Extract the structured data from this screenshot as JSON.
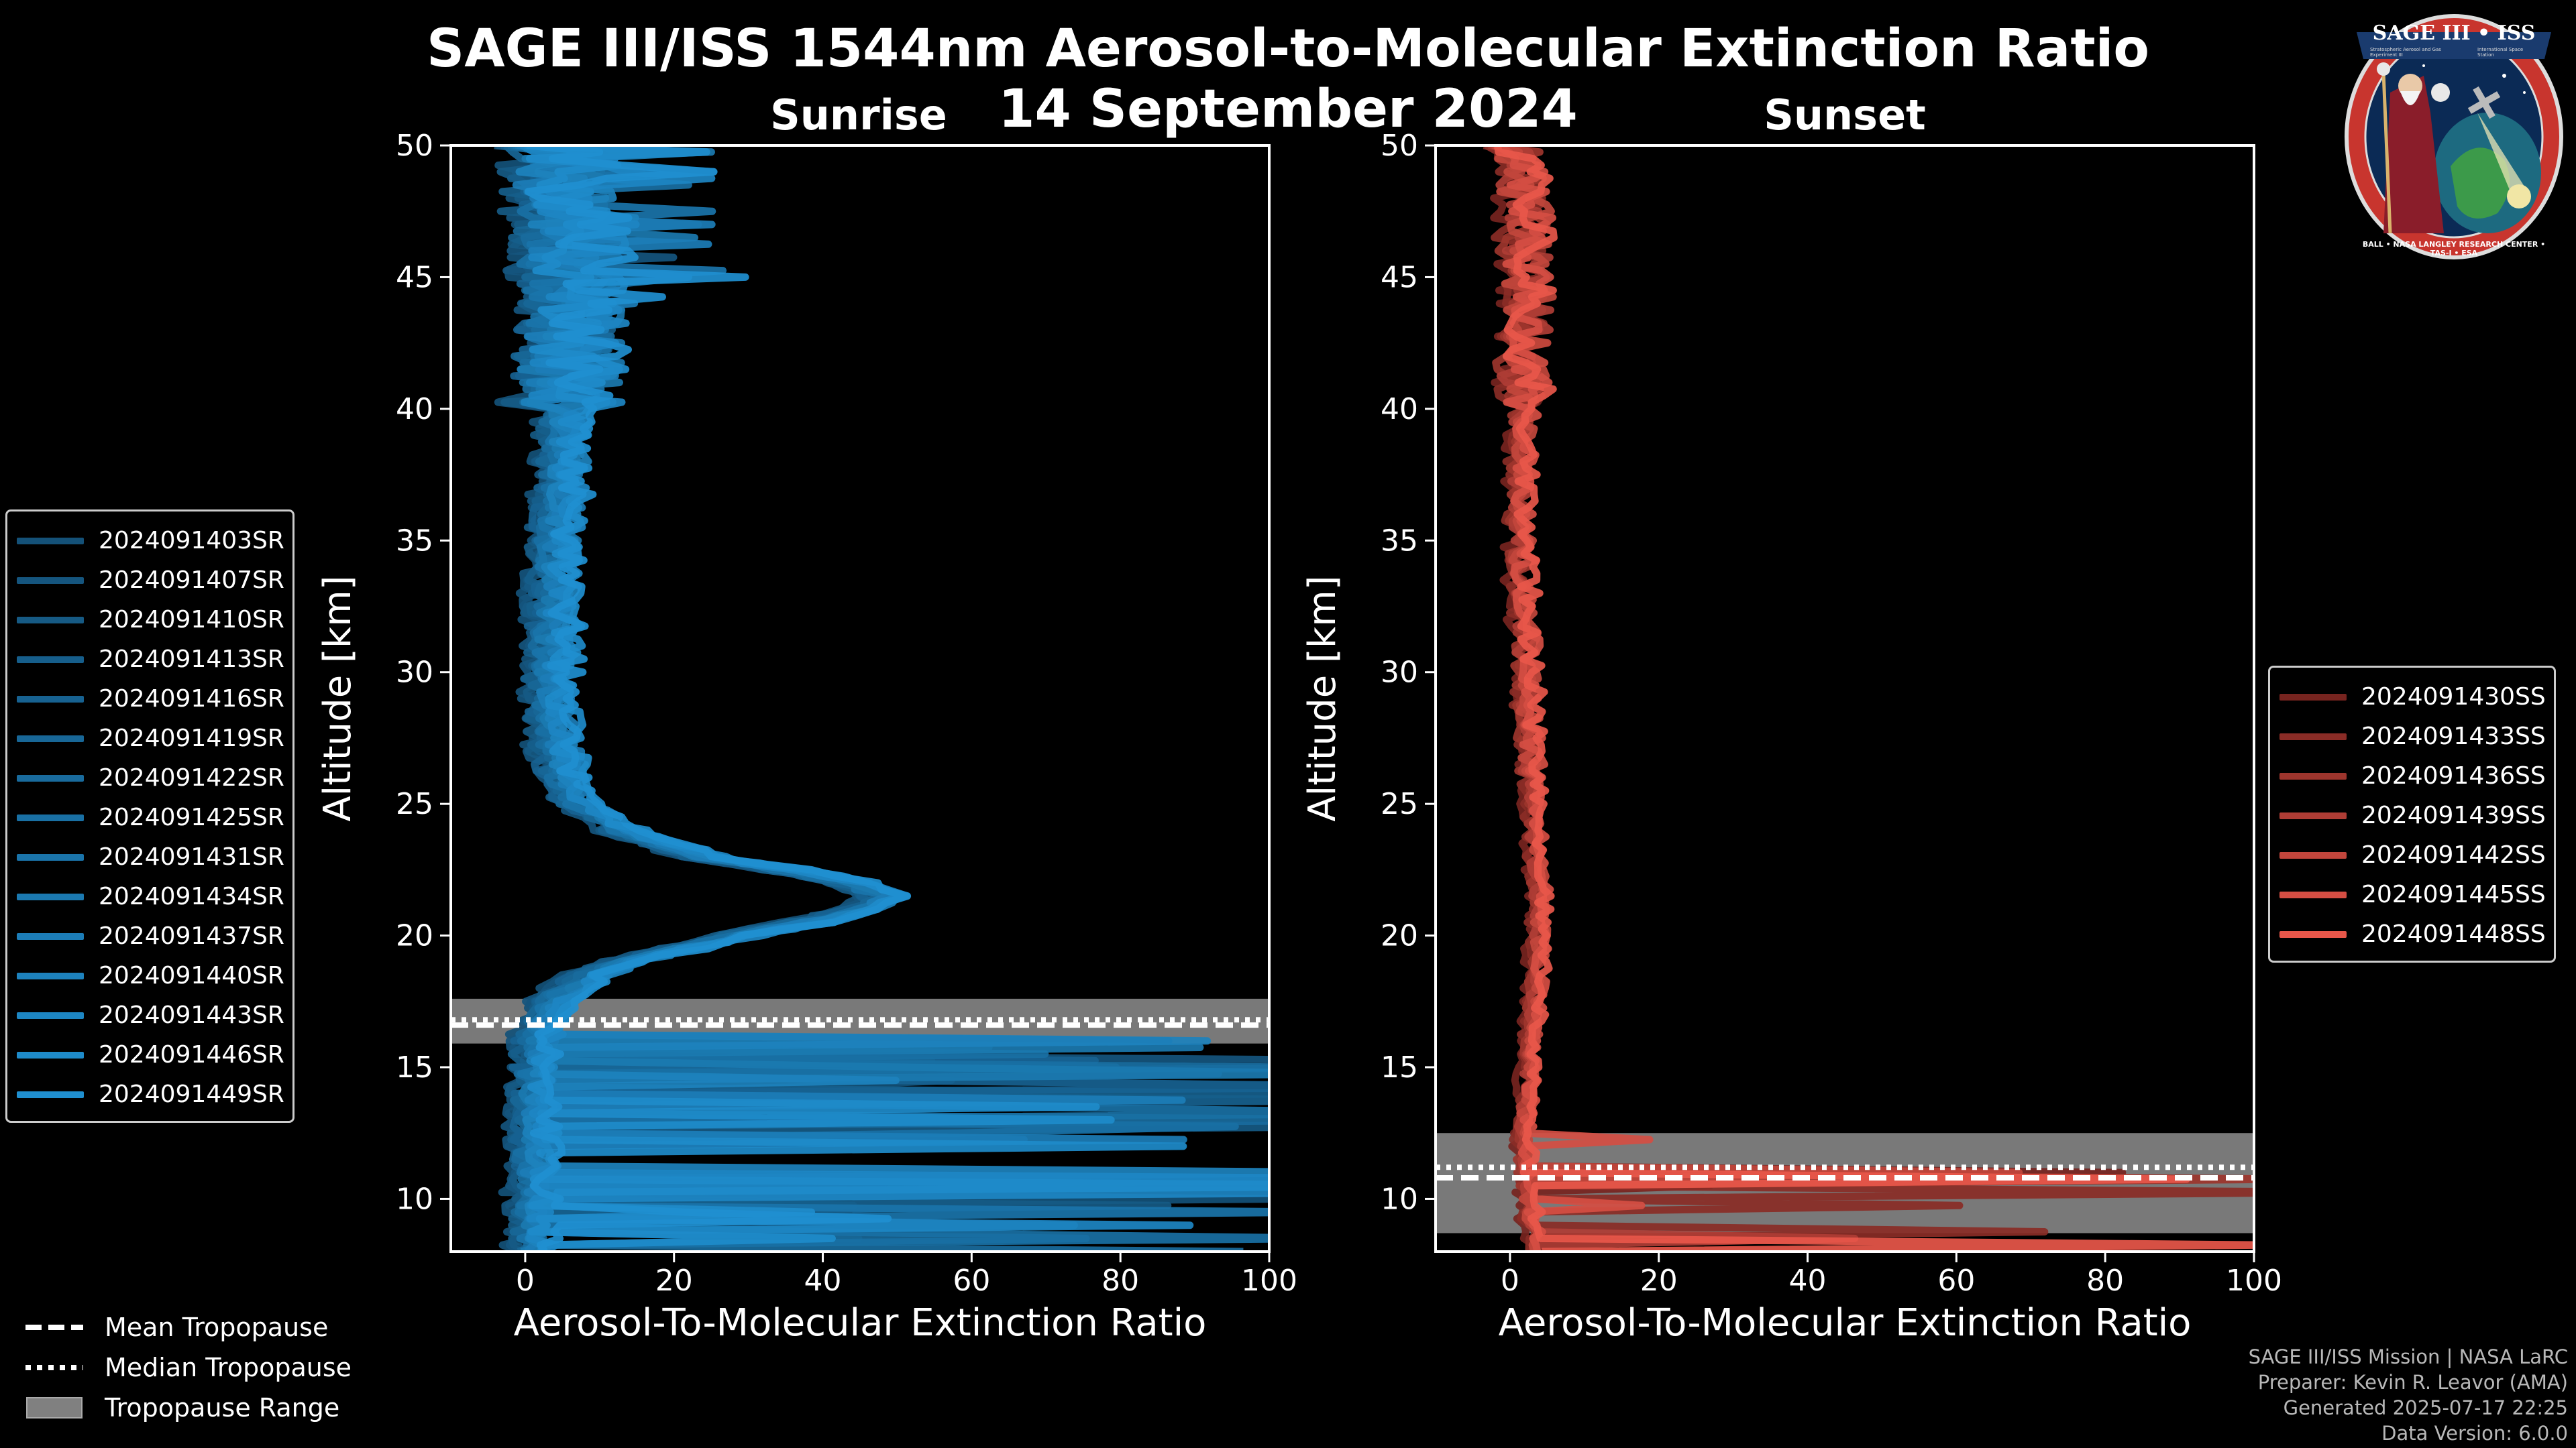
{
  "header": {
    "title": "SAGE III/ISS 1544nm Aerosol-to-Molecular Extinction Ratio",
    "date": "14 September 2024",
    "panel_left_title": "Sunrise",
    "panel_right_title": "Sunset"
  },
  "colors": {
    "sunrise": "#1f8fd0",
    "sunset": "#e8574a",
    "tropopause_band": "#808080",
    "background": "#000000"
  },
  "chart_data": [
    {
      "type": "line",
      "title": "Sunrise",
      "xlabel": "Aerosol-To-Molecular Extinction Ratio",
      "ylabel": "Altitude [km]",
      "xlim": [
        -10,
        100
      ],
      "ylim": [
        8,
        50
      ],
      "xticks": [
        0,
        20,
        40,
        60,
        80,
        100
      ],
      "yticks": [
        10,
        15,
        20,
        25,
        30,
        35,
        40,
        45,
        50
      ],
      "tropopause": {
        "mean": 16.6,
        "median": 16.8,
        "min": 15.9,
        "max": 17.6
      },
      "series": [
        {
          "name": "2024091403SR"
        },
        {
          "name": "2024091407SR"
        },
        {
          "name": "2024091410SR"
        },
        {
          "name": "2024091413SR"
        },
        {
          "name": "2024091416SR"
        },
        {
          "name": "2024091419SR"
        },
        {
          "name": "2024091422SR"
        },
        {
          "name": "2024091425SR"
        },
        {
          "name": "2024091431SR"
        },
        {
          "name": "2024091434SR"
        },
        {
          "name": "2024091437SR"
        },
        {
          "name": "2024091440SR"
        },
        {
          "name": "2024091443SR"
        },
        {
          "name": "2024091446SR"
        },
        {
          "name": "2024091449SR"
        }
      ],
      "mean_profile": {
        "altitude": [
          50,
          48,
          46,
          44,
          42,
          40,
          38,
          36,
          34,
          32,
          30,
          28,
          26,
          25,
          24,
          23,
          22.5,
          22,
          21.5,
          21,
          20.5,
          20,
          19.5,
          19,
          18.5,
          18,
          17.5,
          17,
          16.5,
          16,
          15,
          14,
          13,
          12,
          11,
          10,
          9,
          8
        ],
        "ratio": [
          5,
          5,
          6,
          7,
          6,
          5,
          5,
          4.5,
          4,
          3.8,
          3.6,
          3.8,
          5,
          7,
          13,
          24,
          35,
          44,
          48,
          46,
          38,
          29,
          21,
          14,
          9,
          6,
          4,
          3,
          2,
          1.5,
          1,
          1,
          1,
          1,
          1,
          1,
          1,
          1
        ]
      }
    },
    {
      "type": "line",
      "title": "Sunset",
      "xlabel": "Aerosol-To-Molecular Extinction Ratio",
      "ylabel": "Altitude [km]",
      "xlim": [
        -10,
        100
      ],
      "ylim": [
        8,
        50
      ],
      "xticks": [
        0,
        20,
        40,
        60,
        80,
        100
      ],
      "yticks": [
        10,
        15,
        20,
        25,
        30,
        35,
        40,
        45,
        50
      ],
      "tropopause": {
        "mean": 10.8,
        "median": 11.2,
        "min": 8.7,
        "max": 12.5
      },
      "series": [
        {
          "name": "2024091430SS"
        },
        {
          "name": "2024091433SS"
        },
        {
          "name": "2024091436SS"
        },
        {
          "name": "2024091439SS"
        },
        {
          "name": "2024091442SS"
        },
        {
          "name": "2024091445SS"
        },
        {
          "name": "2024091448SS"
        }
      ],
      "mean_profile": {
        "altitude": [
          50,
          48,
          46,
          44,
          42,
          40,
          38,
          36,
          34,
          32,
          30,
          28,
          26,
          24,
          22,
          20,
          18,
          16,
          14,
          13,
          12,
          11,
          10,
          9,
          8
        ],
        "ratio": [
          1,
          2,
          2,
          2.5,
          2,
          2,
          1.5,
          1.5,
          1.5,
          2,
          2.5,
          2.5,
          3,
          3.5,
          4,
          4,
          3.5,
          3,
          2.5,
          2,
          2,
          2,
          2.5,
          3,
          4
        ]
      }
    }
  ],
  "legend_bottom": {
    "mean": "Mean Tropopause",
    "median": "Median Tropopause",
    "range": "Tropopause Range"
  },
  "footer": {
    "line1": "SAGE III/ISS Mission | NASA LaRC",
    "line2": "Preparer: Kevin R. Leavor (AMA)",
    "line3": "Generated 2025-07-17 22:25",
    "line4": "Data Version: 6.0.0"
  },
  "logo": {
    "top_text": "SAGE III • ISS",
    "ring_text": "BALL • NASA LANGLEY RESEARCH CENTER • TAS-I • ESA",
    "small_left": "Stratospheric Aerosol and Gas Experiment III",
    "small_right": "International Space Station"
  }
}
